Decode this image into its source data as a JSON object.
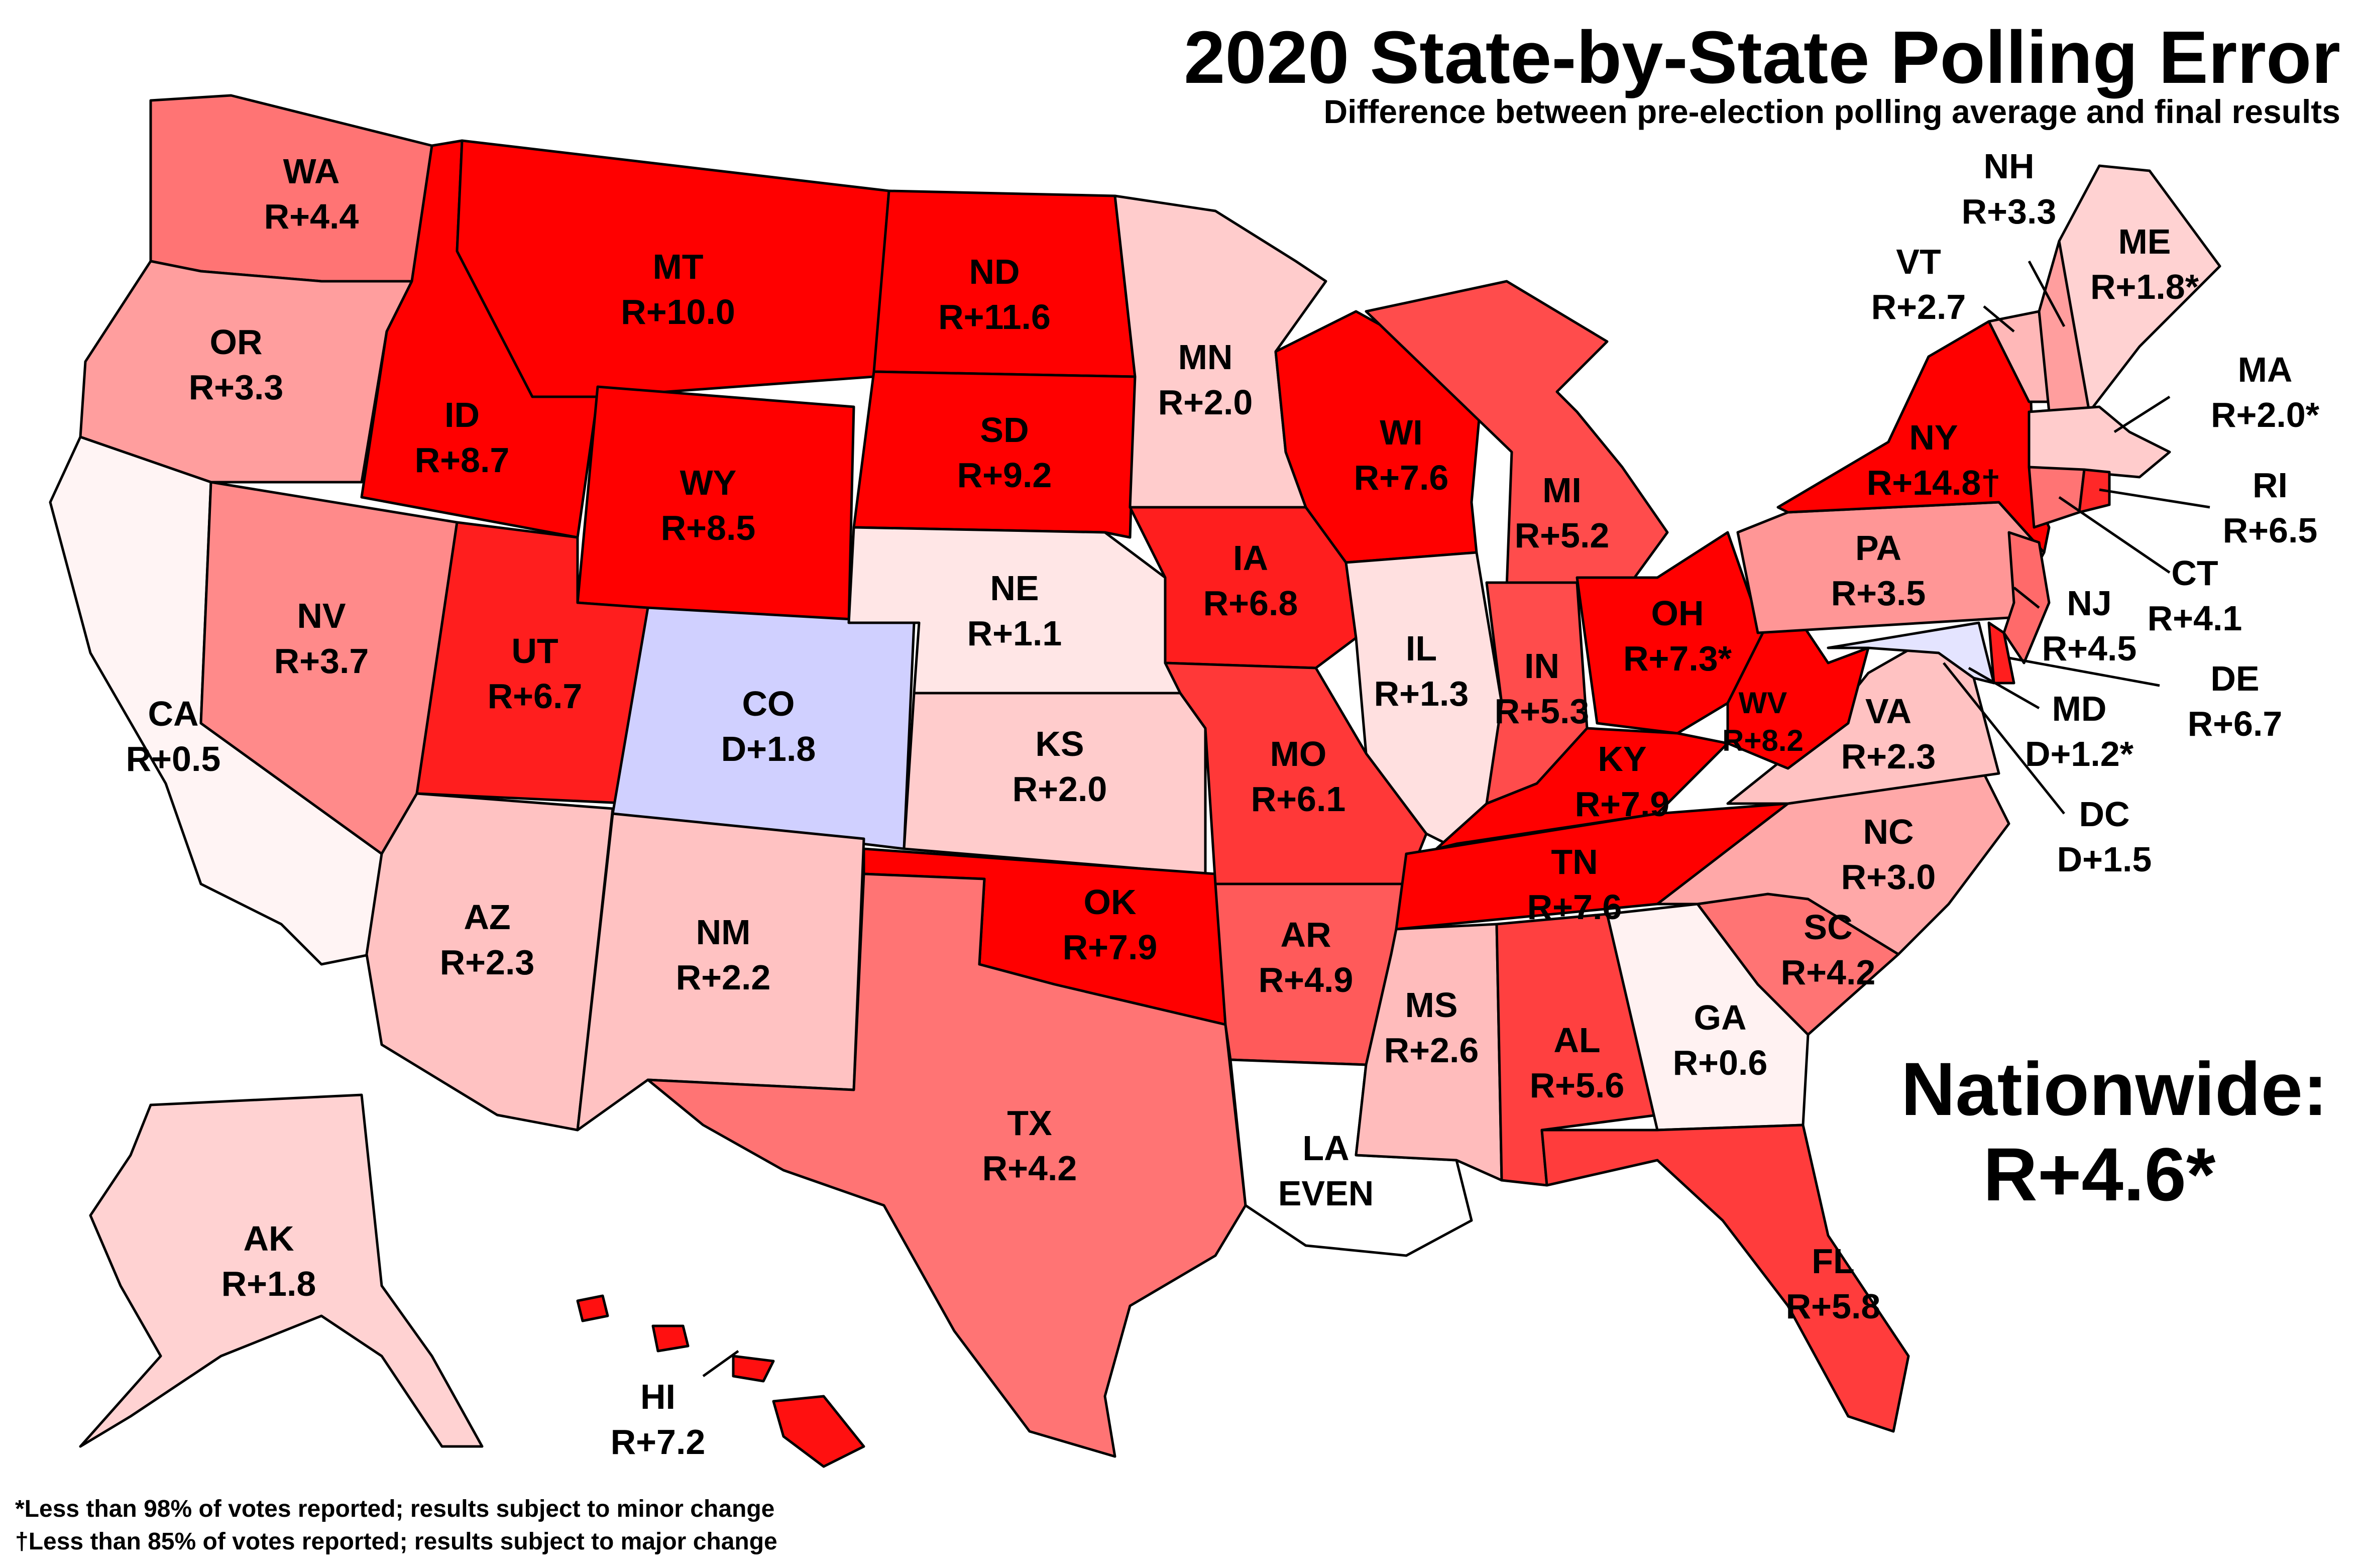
{
  "title": "2020 State-by-State Polling Error",
  "subtitle": "Difference between pre-election polling average and final results",
  "nationwide": {
    "label": "Nationwide:",
    "value": "R+4.6*"
  },
  "footnotes": [
    "*Less than 98% of votes reported; results subject to minor change",
    "†Less than 85% of votes reported; results subject to major change"
  ],
  "colors": {
    "r_0_1": "#fff4f4",
    "r_1_2": "#ffd2d2",
    "r_2_3": "#ffc2c2",
    "r_3_4": "#ff9e9e",
    "r_4_5": "#ff7474",
    "r_5_6": "#ff4c4c",
    "r_6_7": "#ff2828",
    "r_7_plus": "#ff0000",
    "d_1_2": "#d0d0ff",
    "d_small": "#e8e8ff",
    "even": "#ffffff",
    "border": "#000000"
  },
  "states": [
    {
      "abbr": "WA",
      "value": "R+4.4",
      "color": "#ff7474"
    },
    {
      "abbr": "OR",
      "value": "R+3.3",
      "color": "#ff9e9e"
    },
    {
      "abbr": "CA",
      "value": "R+0.5",
      "color": "#fff4f4"
    },
    {
      "abbr": "NV",
      "value": "R+3.7",
      "color": "#ff8a8a"
    },
    {
      "abbr": "ID",
      "value": "R+8.7",
      "color": "#ff0000"
    },
    {
      "abbr": "MT",
      "value": "R+10.0",
      "color": "#ff0000"
    },
    {
      "abbr": "WY",
      "value": "R+8.5",
      "color": "#ff0000"
    },
    {
      "abbr": "UT",
      "value": "R+6.7",
      "color": "#ff1e1e"
    },
    {
      "abbr": "AZ",
      "value": "R+2.3",
      "color": "#ffc2c2"
    },
    {
      "abbr": "CO",
      "value": "D+1.8",
      "color": "#d0d0ff"
    },
    {
      "abbr": "NM",
      "value": "R+2.2",
      "color": "#ffc2c2"
    },
    {
      "abbr": "ND",
      "value": "R+11.6",
      "color": "#ff0000"
    },
    {
      "abbr": "SD",
      "value": "R+9.2",
      "color": "#ff0000"
    },
    {
      "abbr": "NE",
      "value": "R+1.1",
      "color": "#ffe6e6"
    },
    {
      "abbr": "KS",
      "value": "R+2.0",
      "color": "#ffcccc"
    },
    {
      "abbr": "OK",
      "value": "R+7.9",
      "color": "#ff0000"
    },
    {
      "abbr": "TX",
      "value": "R+4.2",
      "color": "#ff7474"
    },
    {
      "abbr": "MN",
      "value": "R+2.0",
      "color": "#ffcccc"
    },
    {
      "abbr": "IA",
      "value": "R+6.8",
      "color": "#ff1e1e"
    },
    {
      "abbr": "MO",
      "value": "R+6.1",
      "color": "#ff3838"
    },
    {
      "abbr": "AR",
      "value": "R+4.9",
      "color": "#ff5a5a"
    },
    {
      "abbr": "LA",
      "value": "EVEN",
      "color": "#ffffff"
    },
    {
      "abbr": "WI",
      "value": "R+7.6",
      "color": "#ff0000"
    },
    {
      "abbr": "IL",
      "value": "R+1.3",
      "color": "#ffe0e0"
    },
    {
      "abbr": "MI",
      "value": "R+5.2",
      "color": "#ff4c4c"
    },
    {
      "abbr": "IN",
      "value": "R+5.3",
      "color": "#ff4c4c"
    },
    {
      "abbr": "OH",
      "value": "R+7.3*",
      "color": "#ff0000"
    },
    {
      "abbr": "KY",
      "value": "R+7.9",
      "color": "#ff0000"
    },
    {
      "abbr": "TN",
      "value": "R+7.6",
      "color": "#ff0000"
    },
    {
      "abbr": "MS",
      "value": "R+2.6",
      "color": "#ffbcbc"
    },
    {
      "abbr": "AL",
      "value": "R+5.6",
      "color": "#ff4040"
    },
    {
      "abbr": "GA",
      "value": "R+0.6",
      "color": "#fff2f2"
    },
    {
      "abbr": "FL",
      "value": "R+5.8",
      "color": "#ff3c3c"
    },
    {
      "abbr": "SC",
      "value": "R+4.2",
      "color": "#ff7474"
    },
    {
      "abbr": "NC",
      "value": "R+3.0",
      "color": "#ffa8a8"
    },
    {
      "abbr": "VA",
      "value": "R+2.3",
      "color": "#ffc2c2"
    },
    {
      "abbr": "WV",
      "value": "R+8.2",
      "color": "#ff0000"
    },
    {
      "abbr": "PA",
      "value": "R+3.5",
      "color": "#ff9696"
    },
    {
      "abbr": "NY",
      "value": "R+14.8†",
      "color": "#ff0000"
    },
    {
      "abbr": "VT",
      "value": "R+2.7",
      "color": "#ffb8b8"
    },
    {
      "abbr": "NH",
      "value": "R+3.3",
      "color": "#ff9e9e"
    },
    {
      "abbr": "ME",
      "value": "R+1.8*",
      "color": "#ffd2d2"
    },
    {
      "abbr": "MA",
      "value": "R+2.0*",
      "color": "#ffcccc"
    },
    {
      "abbr": "RI",
      "value": "R+6.5",
      "color": "#ff2828"
    },
    {
      "abbr": "CT",
      "value": "R+4.1",
      "color": "#ff7474"
    },
    {
      "abbr": "NJ",
      "value": "R+4.5",
      "color": "#ff6a6a"
    },
    {
      "abbr": "DE",
      "value": "R+6.7",
      "color": "#ff1e1e"
    },
    {
      "abbr": "MD",
      "value": "D+1.2*",
      "color": "#e4e4ff"
    },
    {
      "abbr": "DC",
      "value": "D+1.5",
      "color": "#dadaff"
    },
    {
      "abbr": "AK",
      "value": "R+1.8",
      "color": "#ffd2d2"
    },
    {
      "abbr": "HI",
      "value": "R+7.2",
      "color": "#ff1010"
    }
  ]
}
